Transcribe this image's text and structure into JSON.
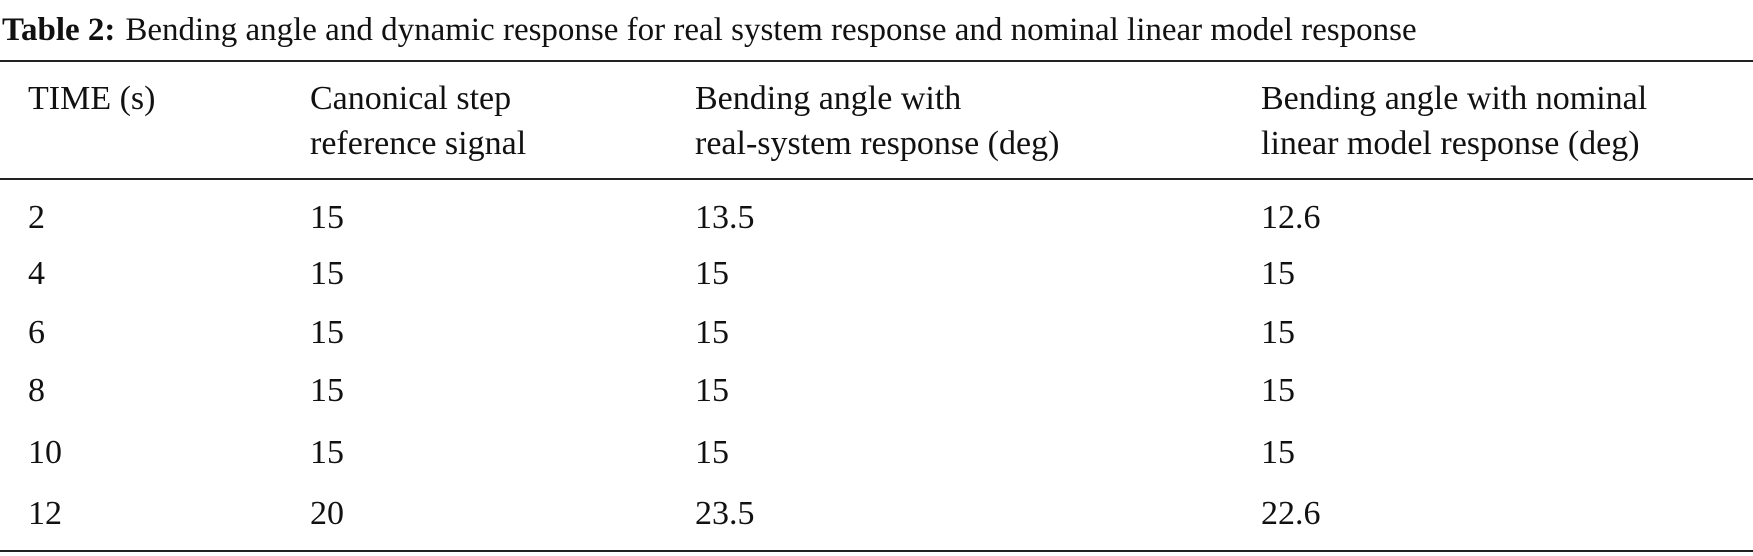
{
  "caption": {
    "label": "Table 2:",
    "text": "Bending angle and dynamic response for real system response and nominal linear model response"
  },
  "table": {
    "header": [
      [
        "TIME (s)"
      ],
      [
        "Canonical step",
        "reference signal"
      ],
      [
        "Bending angle with",
        "real-system response (deg)"
      ],
      [
        "Bending angle with nominal",
        "linear model response (deg)"
      ]
    ],
    "rows": [
      [
        2,
        15,
        13.5,
        12.6
      ],
      [
        4,
        15,
        15,
        15
      ],
      [
        6,
        15,
        15,
        15
      ],
      [
        8,
        15,
        15,
        15
      ],
      [
        10,
        15,
        15,
        15
      ],
      [
        12,
        20,
        23.5,
        22.6
      ]
    ]
  }
}
